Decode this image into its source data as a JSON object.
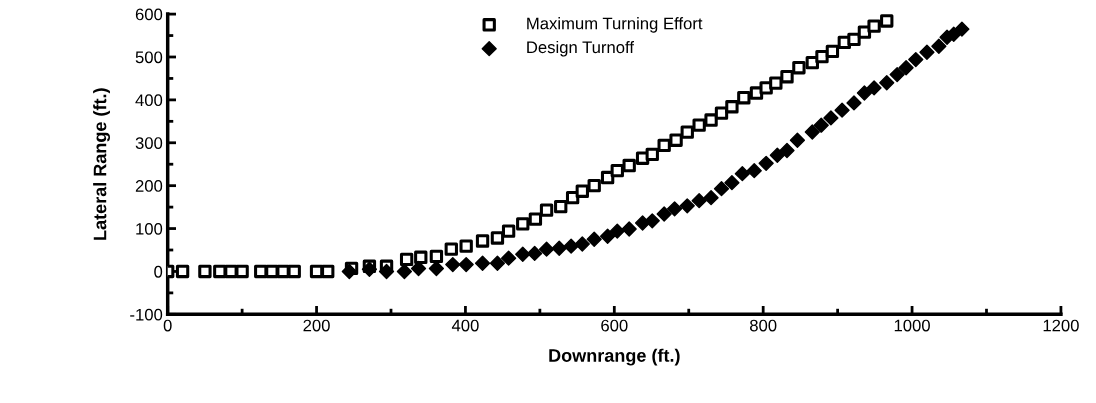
{
  "chart_data": {
    "type": "scatter",
    "xlabel": "Downrange (ft.)",
    "ylabel": "Lateral Range (ft.)",
    "xlim": [
      0,
      1200
    ],
    "xticks": [
      0,
      200,
      400,
      600,
      800,
      1000,
      1200
    ],
    "ylim": [
      -100,
      600
    ],
    "yticks": [
      -100,
      0,
      100,
      200,
      300,
      400,
      500,
      600
    ],
    "grid": false,
    "legend": "top",
    "series": [
      {
        "name": "Maximum Turning Effort",
        "marker": "square",
        "color": "#000000",
        "x": [
          0,
          20,
          50,
          70,
          85,
          100,
          125,
          140,
          155,
          170,
          200,
          215,
          247,
          271,
          294,
          321,
          340,
          361,
          381,
          401,
          423,
          443,
          458,
          477,
          494,
          509,
          528,
          544,
          557,
          573,
          591,
          604,
          620,
          638,
          651,
          667,
          683,
          698,
          714,
          730,
          744,
          758,
          774,
          791,
          804,
          817,
          832,
          848,
          866,
          879,
          893,
          909,
          922,
          936,
          949,
          966
        ],
        "values": [
          0,
          0,
          0,
          0,
          0,
          0,
          0,
          0,
          0,
          0,
          0,
          0,
          7,
          12,
          12,
          28,
          33,
          35,
          52,
          59,
          71,
          78,
          94,
          111,
          122,
          143,
          151,
          172,
          187,
          200,
          219,
          235,
          247,
          264,
          273,
          294,
          306,
          325,
          341,
          353,
          369,
          384,
          405,
          416,
          428,
          439,
          454,
          475,
          487,
          501,
          513,
          534,
          541,
          558,
          572,
          584
        ]
      },
      {
        "name": "Design Turnoff",
        "marker": "diamond",
        "color": "#000000",
        "x": [
          244,
          271,
          294,
          318,
          337,
          361,
          383,
          401,
          423,
          443,
          458,
          477,
          493,
          509,
          526,
          542,
          557,
          573,
          591,
          604,
          620,
          638,
          651,
          667,
          681,
          698,
          714,
          730,
          744,
          758,
          772,
          788,
          804,
          819,
          832,
          846,
          866,
          878,
          891,
          906,
          922,
          936,
          949,
          966,
          980,
          992,
          1005,
          1020,
          1036,
          1047,
          1056,
          1067
        ],
        "values": [
          0,
          5,
          0,
          0,
          7,
          7,
          16,
          16,
          19,
          19,
          31,
          40,
          42,
          52,
          54,
          59,
          64,
          75,
          82,
          94,
          99,
          113,
          118,
          134,
          146,
          153,
          165,
          172,
          193,
          207,
          228,
          235,
          252,
          271,
          282,
          306,
          325,
          341,
          358,
          376,
          393,
          416,
          428,
          440,
          459,
          475,
          494,
          511,
          525,
          546,
          553,
          565
        ]
      }
    ]
  }
}
